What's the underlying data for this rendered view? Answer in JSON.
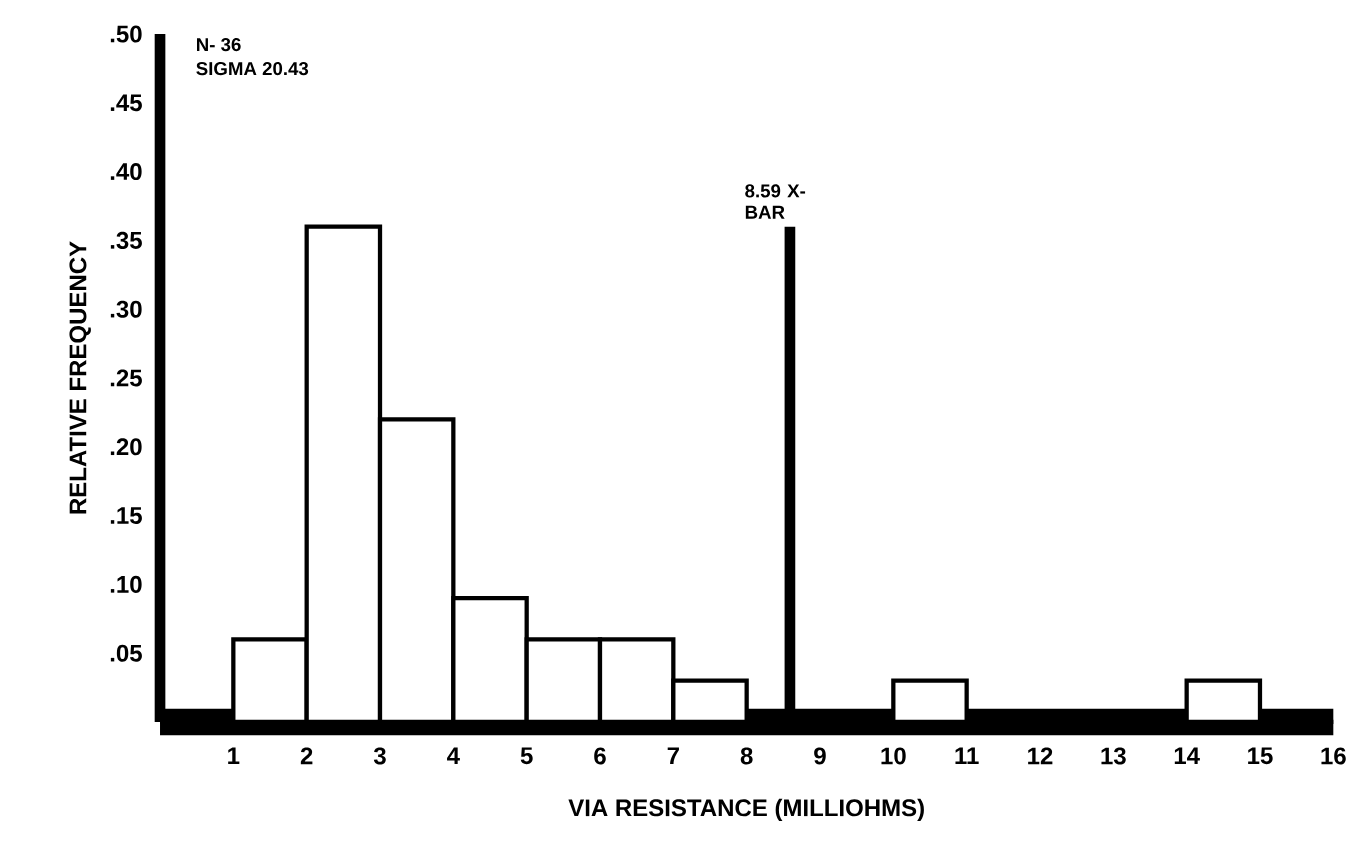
{
  "chart_data": {
    "type": "histogram",
    "xlabel": "VIA RESISTANCE (MILLIOHMS)",
    "ylabel": "RELATIVE FREQUENCY",
    "bins": [
      0,
      1,
      2,
      3,
      4,
      5,
      6,
      7,
      8,
      9,
      10,
      11,
      12,
      13,
      14,
      15,
      16
    ],
    "values": [
      0,
      0.06,
      0.36,
      0.22,
      0.09,
      0.06,
      0.06,
      0.03,
      0,
      0,
      0.03,
      0,
      0,
      0,
      0.03,
      0
    ],
    "color": "#ffffff",
    "xlim": [
      0,
      16
    ],
    "xticks": [
      1,
      2,
      3,
      4,
      5,
      6,
      7,
      8,
      9,
      10,
      11,
      12,
      13,
      14,
      15,
      16
    ],
    "ylim": [
      0,
      0.5
    ],
    "yticks": [
      {
        "value": 0.05,
        "label": ".05"
      },
      {
        "value": 0.1,
        "label": ".10"
      },
      {
        "value": 0.15,
        "label": ".15"
      },
      {
        "value": 0.2,
        "label": ".20"
      },
      {
        "value": 0.25,
        "label": ".25"
      },
      {
        "value": 0.3,
        "label": ".30"
      },
      {
        "value": 0.35,
        "label": ".35"
      },
      {
        "value": 0.4,
        "label": ".40"
      },
      {
        "value": 0.45,
        "label": ".45"
      },
      {
        "value": 0.5,
        "label": ".50"
      }
    ],
    "ref_lines": [
      {
        "axis": "x",
        "value": 8.59,
        "label": "8.59 X-BAR"
      }
    ],
    "annotations": [
      "N- 36",
      "SIGMA 20.43"
    ]
  }
}
